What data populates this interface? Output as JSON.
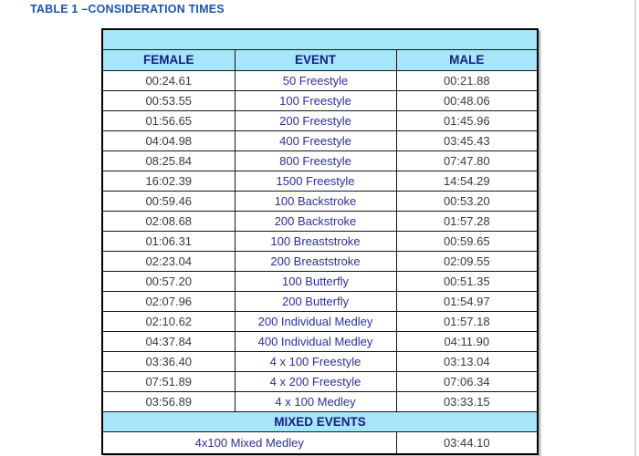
{
  "page": {
    "title": "TABLE 1 –CONSIDERATION TIMES"
  },
  "colors": {
    "header_fill": "#a5e6fa",
    "title_text": "#1c55a7",
    "header_text": "#141f7d",
    "event_text": "#2b3190",
    "time_text": "#3a3a3a",
    "border": "#000000"
  },
  "table": {
    "headers": {
      "female": "FEMALE",
      "event": "EVENT",
      "male": "MALE"
    },
    "rows": [
      {
        "female": "00:24.61",
        "event": "50 Freestyle",
        "male": "00:21.88"
      },
      {
        "female": "00:53.55",
        "event": "100 Freestyle",
        "male": "00:48.06"
      },
      {
        "female": "01:56.65",
        "event": "200 Freestyle",
        "male": "01:45.96"
      },
      {
        "female": "04:04.98",
        "event": "400 Freestyle",
        "male": "03:45.43"
      },
      {
        "female": "08:25.84",
        "event": "800 Freestyle",
        "male": "07:47.80"
      },
      {
        "female": "16:02.39",
        "event": "1500 Freestyle",
        "male": "14:54.29"
      },
      {
        "female": "00:59.46",
        "event": "100 Backstroke",
        "male": "00:53.20"
      },
      {
        "female": "02:08.68",
        "event": "200 Backstroke",
        "male": "01:57.28"
      },
      {
        "female": "01:06.31",
        "event": "100 Breaststroke",
        "male": "00:59.65"
      },
      {
        "female": "02:23.04",
        "event": "200 Breaststroke",
        "male": "02:09.55"
      },
      {
        "female": "00:57.20",
        "event": "100 Butterfly",
        "male": "00:51.35"
      },
      {
        "female": "02:07.96",
        "event": "200 Butterfly",
        "male": "01:54.97"
      },
      {
        "female": "02:10.62",
        "event": "200 Individual Medley",
        "male": "01:57.18"
      },
      {
        "female": "04:37.84",
        "event": "400 Individual Medley",
        "male": "04:11.90"
      },
      {
        "female": "03:36.40",
        "event": "4 x 100 Freestyle",
        "male": "03:13.04"
      },
      {
        "female": "07:51.89",
        "event": "4 x 200 Freestyle",
        "male": "07:06.34"
      },
      {
        "female": "03:56.89",
        "event": "4 x 100 Medley",
        "male": "03:33.15"
      }
    ],
    "mixed_section": {
      "label": "MIXED EVENTS",
      "rows": [
        {
          "event": "4x100 Mixed Medley",
          "male": "03:44.10"
        }
      ]
    }
  }
}
